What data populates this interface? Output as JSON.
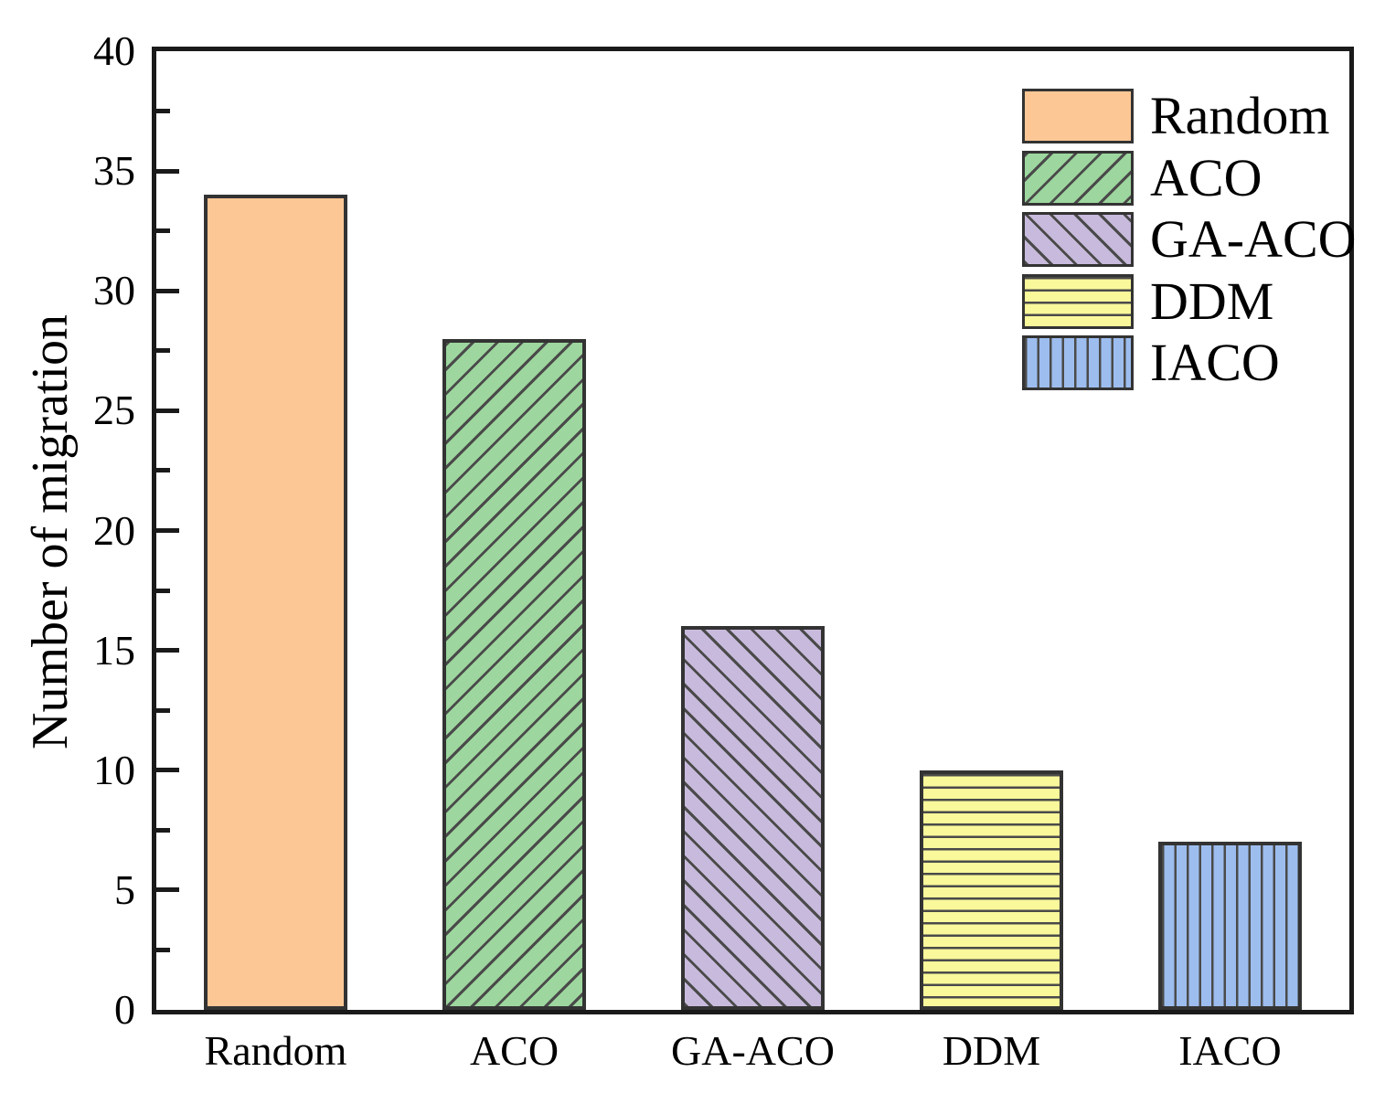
{
  "chart_data": {
    "type": "bar",
    "title": "",
    "xlabel": "",
    "ylabel": "Number of migration",
    "categories": [
      "Random",
      "ACO",
      "GA-ACO",
      "DDM",
      "IACO"
    ],
    "values": [
      34,
      28,
      16,
      10,
      7
    ],
    "ylim": [
      0,
      40
    ],
    "y_major_ticks": [
      0,
      5,
      10,
      15,
      20,
      25,
      30,
      35,
      40
    ],
    "y_minor_ticks": [
      2.5,
      7.5,
      12.5,
      17.5,
      22.5,
      27.5,
      32.5,
      37.5
    ],
    "grid": false,
    "legend_position": "upper-right",
    "series_styles": [
      {
        "label": "Random",
        "fill": "#FCC795",
        "hatch": "none"
      },
      {
        "label": "ACO",
        "fill": "#9DD69E",
        "hatch": "/"
      },
      {
        "label": "GA-ACO",
        "fill": "#C8BADC",
        "hatch": "\\"
      },
      {
        "label": "DDM",
        "fill": "#F9F89B",
        "hatch": "-"
      },
      {
        "label": "IACO",
        "fill": "#9DBDEF",
        "hatch": "|"
      }
    ],
    "colors": {
      "bar_edge": "#333333",
      "hatch": "#4a4a4a",
      "axis": "#1a1a1a",
      "text": "#000000",
      "background": "#ffffff"
    }
  }
}
